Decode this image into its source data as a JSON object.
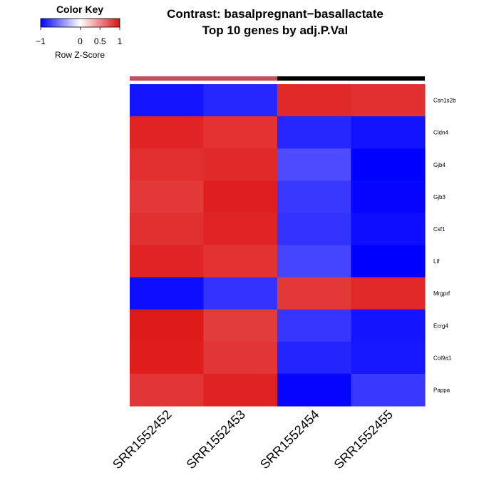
{
  "chart_data": {
    "type": "heatmap",
    "title_lines": [
      "Contrast: basalpregnant−basallactate",
      "Top 10 genes by adj.P.Val"
    ],
    "color_key": {
      "title": "Color Key",
      "xlabel": "Row Z-Score",
      "ticks": [
        "−1",
        "0",
        "0.5",
        "1"
      ],
      "tick_values": [
        -1,
        0,
        0.5,
        1
      ],
      "range": [
        -1,
        1
      ],
      "low_color": "#0000ff",
      "mid_color": "#ffffff",
      "high_color": "#dd1111"
    },
    "column_groups": [
      {
        "color": "#c0505e",
        "columns": [
          0,
          1
        ]
      },
      {
        "color": "#000000",
        "columns": [
          2,
          3
        ]
      }
    ],
    "columns": [
      "SRR1552452",
      "SRR1552453",
      "SRR1552454",
      "SRR1552455"
    ],
    "rows": [
      "Csn1s2b",
      "Cldn4",
      "Gjb4",
      "Gjb3",
      "Csf1",
      "Lif",
      "Mrgprf",
      "Ecrg4",
      "Col9a1",
      "Pappa"
    ],
    "values": [
      [
        -0.92,
        -0.85,
        0.9,
        0.87
      ],
      [
        0.92,
        0.86,
        -0.85,
        -0.93
      ],
      [
        0.88,
        0.9,
        -0.7,
        -1.0
      ],
      [
        0.83,
        0.94,
        -0.78,
        -0.98
      ],
      [
        0.87,
        0.92,
        -0.8,
        -0.95
      ],
      [
        0.92,
        0.86,
        -0.73,
        -1.0
      ],
      [
        -0.95,
        -0.8,
        0.83,
        0.9
      ],
      [
        0.96,
        0.82,
        -0.79,
        -0.92
      ],
      [
        0.95,
        0.85,
        -0.86,
        -0.91
      ],
      [
        0.85,
        0.93,
        -0.98,
        -0.78
      ]
    ]
  }
}
